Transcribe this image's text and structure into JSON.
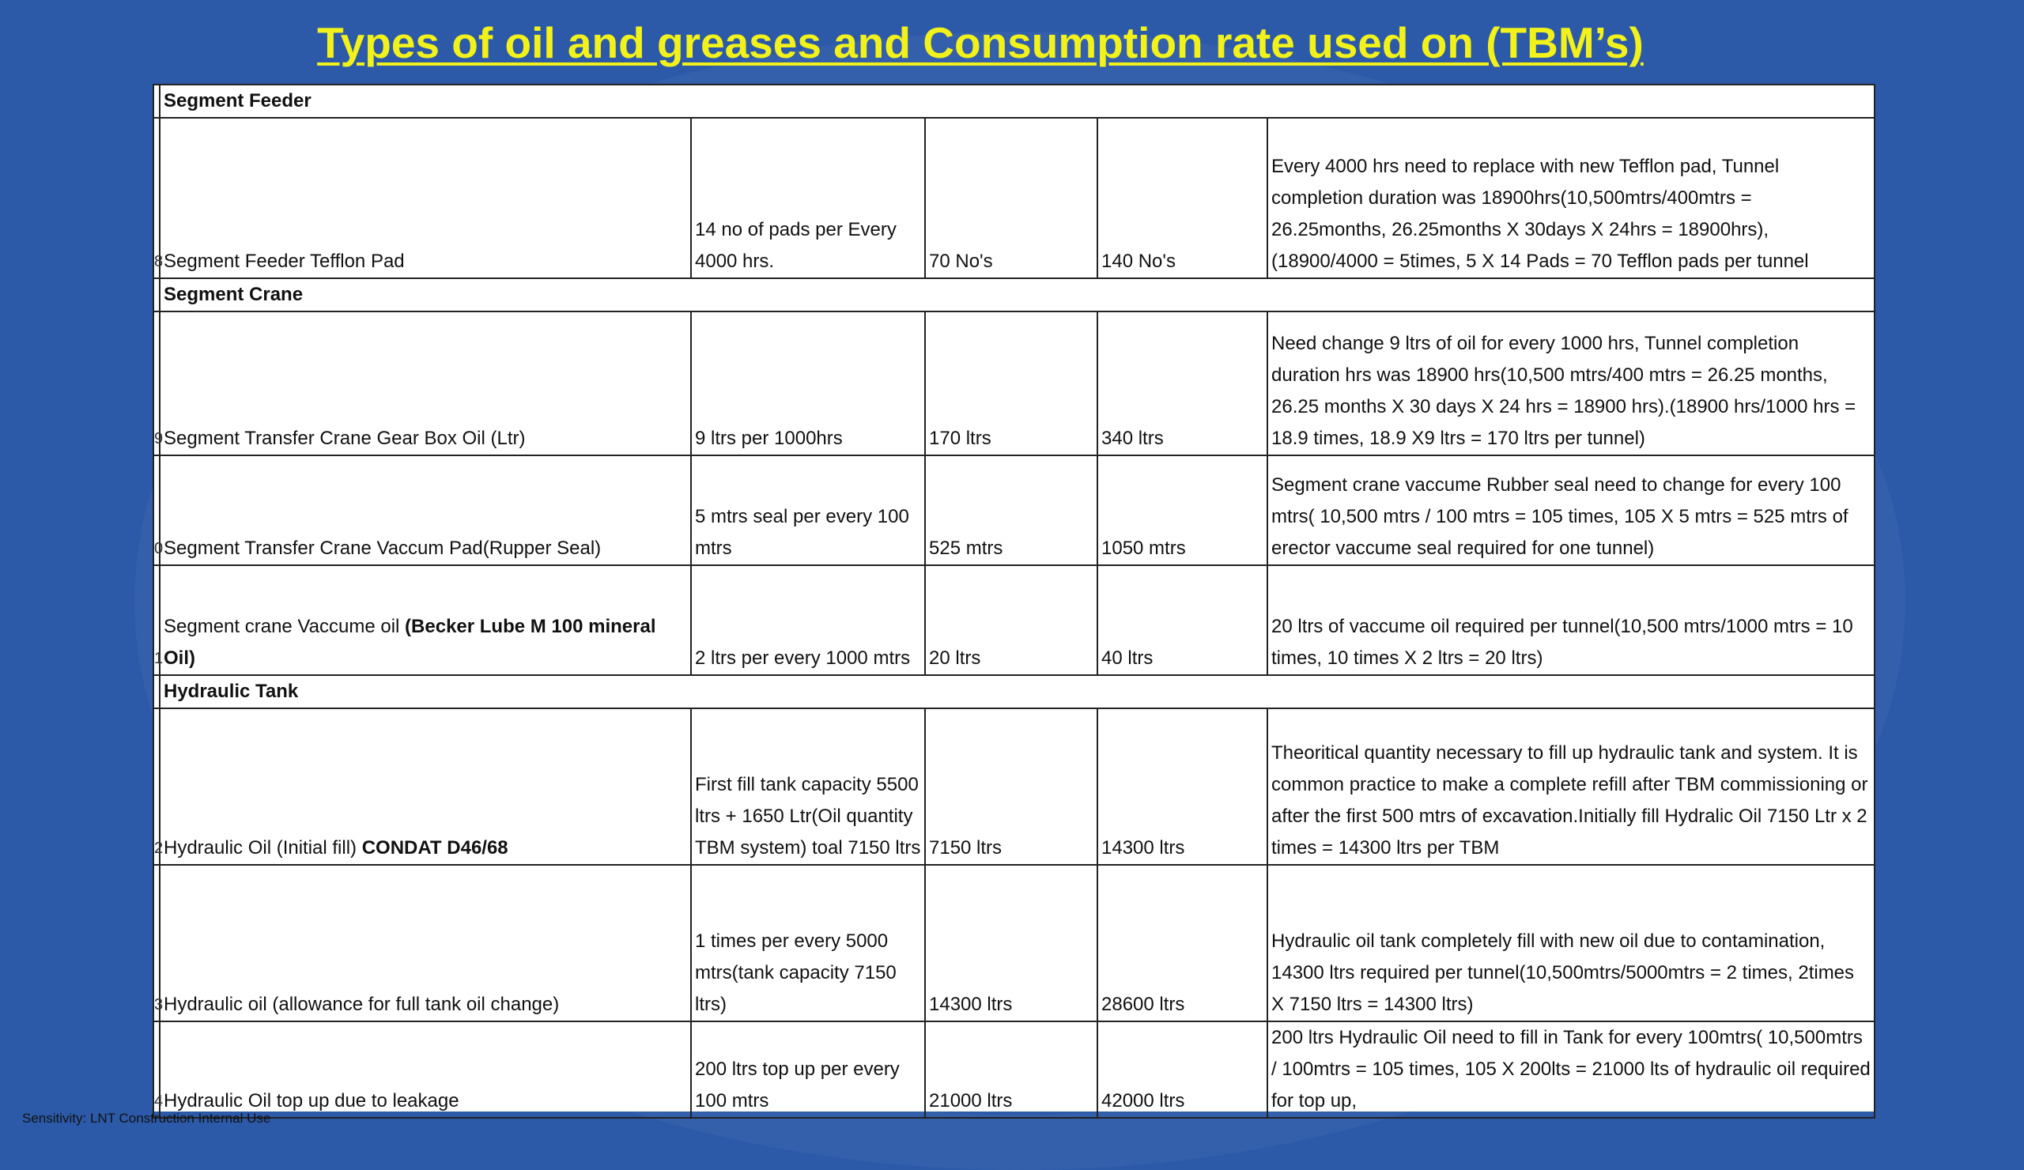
{
  "title": "Types of oil and greases and Consumption rate used on (TBM’s)",
  "footer": "Sensitivity: LNT Construction Internal Use",
  "sections": [
    {
      "name": "Segment Feeder",
      "rows": [
        {
          "index": "8",
          "item": "Segment Feeder Tefflon Pad",
          "item_bold": "",
          "rate": "14 no of pads per Every 4000 hrs.",
          "qty1": "70 No's",
          "qty2": "140 No's",
          "remarks": "Every 4000 hrs need to replace with new Tefflon pad, Tunnel completion duration was 18900hrs(10,500mtrs/400mtrs = 26.25months, 26.25months X 30days X 24hrs = 18900hrs),(18900/4000 = 5times, 5 X 14 Pads = 70 Tefflon pads per tunnel"
        }
      ]
    },
    {
      "name": "Segment Crane",
      "rows": [
        {
          "index": "9",
          "item": "Segment Transfer Crane Gear Box Oil (Ltr)",
          "item_bold": "",
          "rate": "9 ltrs per 1000hrs",
          "qty1": "170 ltrs",
          "qty2": "340 ltrs",
          "remarks": "Need change 9 ltrs of oil for every 1000 hrs, Tunnel completion duration hrs was 18900 hrs(10,500 mtrs/400 mtrs = 26.25 months, 26.25 months X 30 days X 24 hrs = 18900 hrs).(18900 hrs/1000 hrs = 18.9 times, 18.9 X9 ltrs = 170 ltrs per tunnel)"
        },
        {
          "index": "0",
          "item": "Segment Transfer Crane Vaccum Pad(Rupper Seal)",
          "item_bold": "",
          "rate": "5 mtrs seal per every 100 mtrs",
          "qty1": "525 mtrs",
          "qty2": "1050 mtrs",
          "remarks": "Segment crane vaccume Rubber seal need to change for every 100 mtrs( 10,500 mtrs / 100 mtrs = 105 times, 105 X 5 mtrs = 525 mtrs of erector vaccume seal required for one tunnel)"
        },
        {
          "index": "1",
          "item": "Segment crane Vaccume oil ",
          "item_bold": "(Becker Lube M 100 mineral Oil)",
          "rate": "2 ltrs per every 1000 mtrs",
          "qty1": "20 ltrs",
          "qty2": "40 ltrs",
          "remarks": "20 ltrs of vaccume oil required per tunnel(10,500 mtrs/1000 mtrs = 10 times, 10 times X 2 ltrs = 20 ltrs)"
        }
      ]
    },
    {
      "name": "Hydraulic Tank",
      "rows": [
        {
          "index": "2",
          "item": "Hydraulic Oil (Initial fill)  ",
          "item_bold": "CONDAT D46/68",
          "rate": "First fill tank capacity 5500 ltrs + 1650 Ltr(Oil quantity TBM system) toal 7150 ltrs",
          "qty1": "7150 ltrs",
          "qty2": "14300 ltrs",
          "remarks": "Theoritical quantity necessary to fill up hydraulic tank and system. It is common practice to make a complete refill after TBM commissioning or after the first 500 mtrs of excavation.Initially fill Hydralic Oil 7150 Ltr x 2 times = 14300 ltrs per TBM"
        },
        {
          "index": "3",
          "item": "Hydraulic oil (allowance for full tank oil change)",
          "item_bold": "",
          "rate": "1 times per every 5000 mtrs(tank capacity 7150 ltrs)",
          "qty1": "14300 ltrs",
          "qty2": "28600 ltrs",
          "remarks": "Hydraulic oil tank completely fill with new oil due to contamination, 14300 ltrs required per tunnel(10,500mtrs/5000mtrs = 2 times, 2times X 7150 ltrs = 14300 ltrs)"
        },
        {
          "index": "4",
          "item": "Hydraulic Oil top up due to leakage",
          "item_bold": "",
          "rate": "200 ltrs top up per every 100 mtrs",
          "qty1": "21000 ltrs",
          "qty2": "42000 ltrs",
          "remarks": "200 ltrs Hydraulic Oil need to fill in Tank for every 100mtrs( 10,500mtrs / 100mtrs = 105 times, 105 X 200lts = 21000 lts of hydraulic oil  required for top up,"
        }
      ]
    }
  ]
}
